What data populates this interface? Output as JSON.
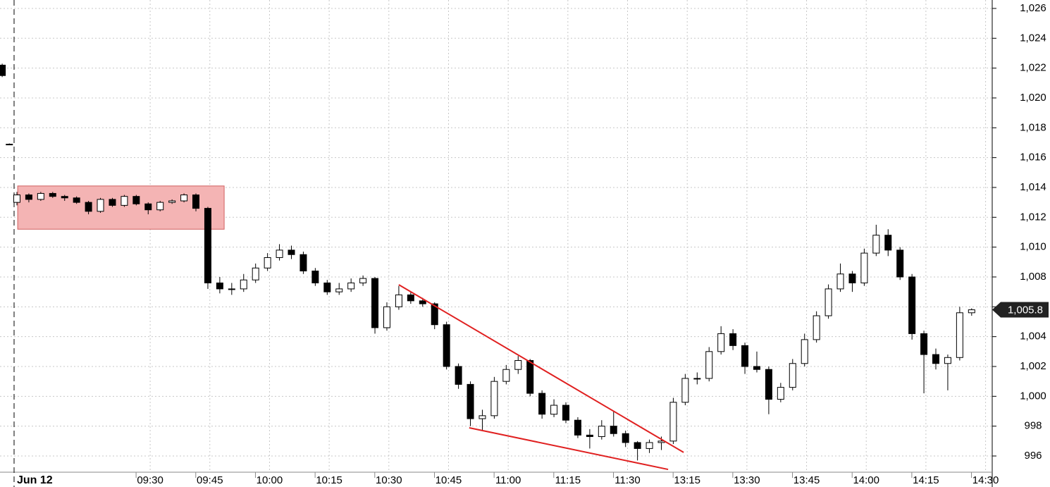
{
  "chart_data": {
    "type": "candlestick",
    "x": [
      -3.7,
      -1.9,
      0,
      3,
      6,
      9,
      12,
      15,
      18,
      21,
      24,
      27,
      30,
      33,
      36,
      39,
      42,
      45,
      48,
      51,
      54,
      57,
      60,
      63,
      66,
      69,
      72,
      75,
      78,
      81,
      84,
      87,
      90,
      93,
      96,
      99,
      102,
      105,
      108,
      111,
      114,
      117,
      120,
      123,
      126,
      129,
      132,
      135,
      138,
      141,
      144,
      147,
      150,
      153,
      156,
      159,
      162,
      165,
      168,
      171,
      174,
      177,
      180,
      183,
      186,
      189,
      192,
      195,
      198,
      201,
      204,
      207,
      210,
      213,
      216,
      219,
      222,
      225,
      228,
      231,
      234,
      237,
      240
    ],
    "ohlc": [
      [
        1022.2,
        1022.3,
        1021.4,
        1021.5
      ],
      [
        1016.9,
        1016.95,
        1016.85,
        1016.9
      ],
      [
        1013.0,
        1013.7,
        1012.8,
        1013.5
      ],
      [
        1013.5,
        1013.6,
        1013.0,
        1013.2
      ],
      [
        1013.2,
        1013.7,
        1013.1,
        1013.6
      ],
      [
        1013.6,
        1013.7,
        1013.3,
        1013.4
      ],
      [
        1013.4,
        1013.5,
        1013.1,
        1013.3
      ],
      [
        1013.3,
        1013.4,
        1012.9,
        1013.0
      ],
      [
        1013.0,
        1013.1,
        1012.2,
        1012.4
      ],
      [
        1012.4,
        1013.3,
        1012.3,
        1013.2
      ],
      [
        1013.2,
        1013.3,
        1012.7,
        1012.8
      ],
      [
        1012.8,
        1013.5,
        1012.7,
        1013.4
      ],
      [
        1013.4,
        1013.5,
        1012.8,
        1012.9
      ],
      [
        1012.9,
        1013.0,
        1012.2,
        1012.5
      ],
      [
        1012.5,
        1013.1,
        1012.4,
        1013.0
      ],
      [
        1013.0,
        1013.2,
        1012.9,
        1013.1
      ],
      [
        1013.1,
        1013.6,
        1013.0,
        1013.5
      ],
      [
        1013.5,
        1013.6,
        1012.4,
        1012.6
      ],
      [
        1012.6,
        1012.7,
        1007.2,
        1007.6
      ],
      [
        1007.6,
        1008.0,
        1006.9,
        1007.2
      ],
      [
        1007.2,
        1007.6,
        1006.8,
        1007.2
      ],
      [
        1007.2,
        1008.2,
        1007.0,
        1007.8
      ],
      [
        1007.8,
        1008.9,
        1007.6,
        1008.6
      ],
      [
        1008.6,
        1009.6,
        1008.4,
        1009.3
      ],
      [
        1009.3,
        1010.2,
        1009.1,
        1009.8
      ],
      [
        1009.8,
        1010.1,
        1009.2,
        1009.5
      ],
      [
        1009.5,
        1009.7,
        1008.2,
        1008.4
      ],
      [
        1008.4,
        1008.6,
        1007.4,
        1007.6
      ],
      [
        1007.6,
        1007.8,
        1006.8,
        1007.0
      ],
      [
        1007.0,
        1007.6,
        1006.8,
        1007.2
      ],
      [
        1007.2,
        1007.9,
        1007.0,
        1007.6
      ],
      [
        1007.6,
        1008.1,
        1007.4,
        1007.9
      ],
      [
        1007.9,
        1008.0,
        1004.2,
        1004.6
      ],
      [
        1004.6,
        1006.3,
        1004.4,
        1006.0
      ],
      [
        1006.0,
        1007.4,
        1005.8,
        1006.8
      ],
      [
        1006.8,
        1007.0,
        1006.2,
        1006.4
      ],
      [
        1006.4,
        1006.6,
        1006.0,
        1006.2
      ],
      [
        1006.2,
        1006.3,
        1004.5,
        1004.8
      ],
      [
        1004.8,
        1005.0,
        1001.8,
        1002.0
      ],
      [
        1002.0,
        1002.2,
        1000.5,
        1000.8
      ],
      [
        1000.8,
        1001.0,
        998.0,
        998.5
      ],
      [
        998.5,
        999.1,
        997.7,
        998.7
      ],
      [
        998.7,
        1001.3,
        998.5,
        1001.0
      ],
      [
        1001.0,
        1002.1,
        1000.8,
        1001.8
      ],
      [
        1001.8,
        1002.7,
        1001.5,
        1002.4
      ],
      [
        1002.4,
        1002.5,
        1000.0,
        1000.2
      ],
      [
        1000.2,
        1000.4,
        998.5,
        998.8
      ],
      [
        998.8,
        999.8,
        998.6,
        999.4
      ],
      [
        999.4,
        999.6,
        998.2,
        998.4
      ],
      [
        998.4,
        998.6,
        997.2,
        997.4
      ],
      [
        997.4,
        997.8,
        996.5,
        997.3
      ],
      [
        997.3,
        998.4,
        997.1,
        998.0
      ],
      [
        998.0,
        999.0,
        997.3,
        997.5
      ],
      [
        997.5,
        997.7,
        996.6,
        996.9
      ],
      [
        996.9,
        997.0,
        995.7,
        996.5
      ],
      [
        996.5,
        997.1,
        996.2,
        996.9
      ],
      [
        996.9,
        997.3,
        996.4,
        997.0
      ],
      [
        997.0,
        999.9,
        996.8,
        999.6
      ],
      [
        999.6,
        1001.5,
        999.4,
        1001.2
      ],
      [
        1001.2,
        1001.6,
        1000.8,
        1001.2
      ],
      [
        1001.2,
        1003.3,
        1001.0,
        1003.0
      ],
      [
        1003.0,
        1004.7,
        1002.8,
        1004.2
      ],
      [
        1004.2,
        1004.5,
        1003.1,
        1003.4
      ],
      [
        1003.4,
        1003.6,
        1001.5,
        1002.0
      ],
      [
        1002.0,
        1003.0,
        1001.6,
        1001.8
      ],
      [
        1001.8,
        1002.0,
        998.8,
        999.8
      ],
      [
        999.8,
        1000.9,
        999.6,
        1000.6
      ],
      [
        1000.6,
        1002.5,
        1000.4,
        1002.2
      ],
      [
        1002.2,
        1004.2,
        1002.0,
        1003.8
      ],
      [
        1003.8,
        1005.7,
        1003.6,
        1005.4
      ],
      [
        1005.4,
        1007.5,
        1005.2,
        1007.2
      ],
      [
        1007.2,
        1008.9,
        1007.0,
        1008.2
      ],
      [
        1008.2,
        1008.4,
        1007.0,
        1007.6
      ],
      [
        1007.6,
        1009.9,
        1007.4,
        1009.6
      ],
      [
        1009.6,
        1011.5,
        1009.4,
        1010.8
      ],
      [
        1010.8,
        1011.2,
        1009.4,
        1009.8
      ],
      [
        1009.8,
        1010.0,
        1007.8,
        1008.0
      ],
      [
        1008.0,
        1008.2,
        1003.8,
        1004.2
      ],
      [
        1004.2,
        1004.4,
        1000.2,
        1002.8
      ],
      [
        1002.8,
        1003.2,
        1001.8,
        1002.2
      ],
      [
        1002.2,
        1002.8,
        1000.4,
        1002.6
      ],
      [
        1002.6,
        1006.0,
        1002.4,
        1005.6
      ],
      [
        1005.6,
        1005.9,
        1005.4,
        1005.8
      ]
    ],
    "up_color": "#ffffff",
    "down_color": "#000000",
    "xlim": [
      -4.25,
      245.17
    ],
    "ylim": [
      994.913,
      1026.565
    ],
    "xticks": [
      {
        "value": 33.5,
        "label": "09:30"
      },
      {
        "value": 48.5,
        "label": "09:45"
      },
      {
        "value": 63.5,
        "label": "10:00"
      },
      {
        "value": 78.5,
        "label": "10:15"
      },
      {
        "value": 93.5,
        "label": "10:30"
      },
      {
        "value": 108.5,
        "label": "10:45"
      },
      {
        "value": 123.5,
        "label": "11:00"
      },
      {
        "value": 138.5,
        "label": "11:15"
      },
      {
        "value": 153.5,
        "label": "11:30"
      },
      {
        "value": 168.5,
        "label": "13:15"
      },
      {
        "value": 183.5,
        "label": "13:30"
      },
      {
        "value": 198.5,
        "label": "13:45"
      },
      {
        "value": 213.5,
        "label": "14:00"
      },
      {
        "value": 228.5,
        "label": "14:15"
      },
      {
        "value": 243.5,
        "label": "14:30"
      }
    ],
    "yticks": [
      996,
      998,
      {
        "value": 1000,
        "label": "1,000"
      },
      {
        "value": 1002,
        "label": "1,002"
      },
      {
        "value": 1004,
        "label": "1,004"
      },
      {
        "value": 1006,
        "label": "1,006"
      },
      {
        "value": 1008,
        "label": "1,008"
      },
      {
        "value": 1010,
        "label": "1,010"
      },
      {
        "value": 1012,
        "label": "1,012"
      },
      {
        "value": 1014,
        "label": "1,014"
      },
      {
        "value": 1016,
        "label": "1,016"
      },
      {
        "value": 1018,
        "label": "1,018"
      },
      {
        "value": 1020,
        "label": "1,020"
      },
      {
        "value": 1022,
        "label": "1,022"
      },
      {
        "value": 1024,
        "label": "1,024"
      },
      {
        "value": 1026,
        "label": "1,026"
      }
    ],
    "grid": true,
    "day_divider": {
      "x": -0.71,
      "label": "Jun 12"
    },
    "last_price": {
      "value": 1005.8,
      "label": "1,005.8"
    },
    "box": {
      "x": [
        0.2,
        52.1
      ],
      "y": [
        1011.2,
        1014.1
      ],
      "color": "#f4b4b4"
    },
    "trendlines": [
      {
        "x": [
          96.0,
          167.6
        ],
        "y": [
          1007.48,
          996.24
        ],
        "color": "#e02020"
      },
      {
        "x": [
          113.7,
          163.7
        ],
        "y": [
          997.89,
          995.1
        ],
        "color": "#e02020"
      }
    ]
  }
}
